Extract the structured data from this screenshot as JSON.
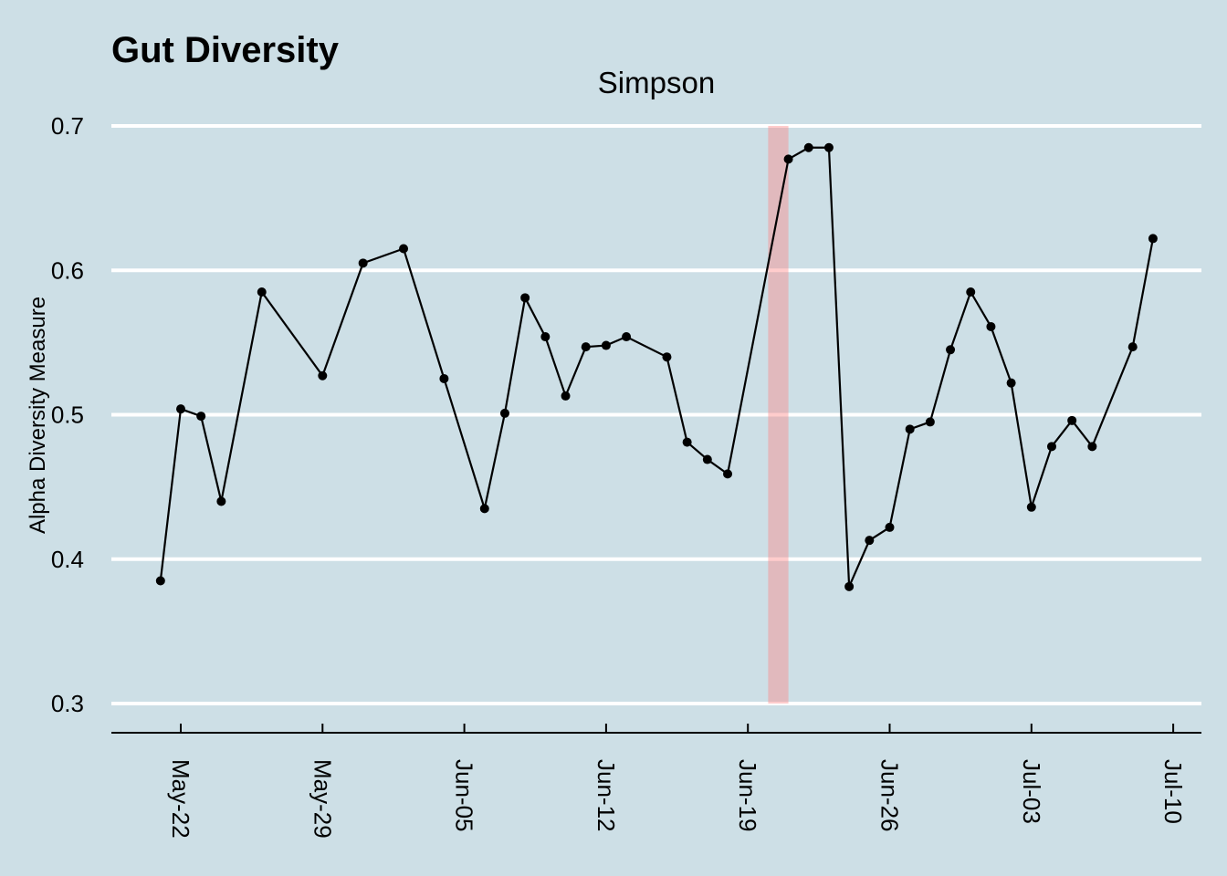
{
  "chart_data": {
    "type": "line",
    "title": "Gut Diversity",
    "subtitle": "Simpson",
    "xlabel": "",
    "ylabel": "Alpha Diversity Measure",
    "ylim": [
      0.3,
      0.7
    ],
    "yticks": [
      0.3,
      0.4,
      0.5,
      0.6,
      0.7
    ],
    "ytick_labels": [
      "0.3",
      "0.4",
      "0.5",
      "0.6",
      "0.7"
    ],
    "xticks": [
      "2023-05-22",
      "2023-05-29",
      "2023-06-05",
      "2023-06-12",
      "2023-06-19",
      "2023-06-26",
      "2023-07-03",
      "2023-07-10"
    ],
    "xtick_labels": [
      "May-22",
      "May-29",
      "Jun-05",
      "Jun-12",
      "Jun-19",
      "Jun-26",
      "Jul-03",
      "Jul-10"
    ],
    "grid": "horizontal",
    "highlight": {
      "start": "2023-06-20",
      "end": "2023-06-21",
      "color": "#ff8080"
    },
    "colors": {
      "background": "#cddfe6",
      "line": "#000000",
      "grid": "#ffffff"
    },
    "series": [
      {
        "x": [
          "2023-05-21",
          "2023-05-22",
          "2023-05-23",
          "2023-05-24",
          "2023-05-26",
          "2023-05-29",
          "2023-05-31",
          "2023-06-02",
          "2023-06-04",
          "2023-06-06",
          "2023-06-07",
          "2023-06-08",
          "2023-06-09",
          "2023-06-10",
          "2023-06-11",
          "2023-06-12",
          "2023-06-13",
          "2023-06-15",
          "2023-06-16",
          "2023-06-17",
          "2023-06-18",
          "2023-06-21",
          "2023-06-22",
          "2023-06-23",
          "2023-06-24",
          "2023-06-25",
          "2023-06-26",
          "2023-06-27",
          "2023-06-28",
          "2023-06-29",
          "2023-06-30",
          "2023-07-01",
          "2023-07-02",
          "2023-07-03",
          "2023-07-04",
          "2023-07-05",
          "2023-07-06",
          "2023-07-08",
          "2023-07-09"
        ],
        "y": [
          0.385,
          0.504,
          0.499,
          0.44,
          0.585,
          0.527,
          0.605,
          0.615,
          0.525,
          0.435,
          0.501,
          0.581,
          0.554,
          0.513,
          0.547,
          0.548,
          0.554,
          0.54,
          0.481,
          0.469,
          0.459,
          0.677,
          0.685,
          0.685,
          0.381,
          0.413,
          0.422,
          0.49,
          0.495,
          0.545,
          0.585,
          0.561,
          0.522,
          0.436,
          0.478,
          0.496,
          0.478,
          0.547,
          0.622
        ]
      }
    ]
  }
}
